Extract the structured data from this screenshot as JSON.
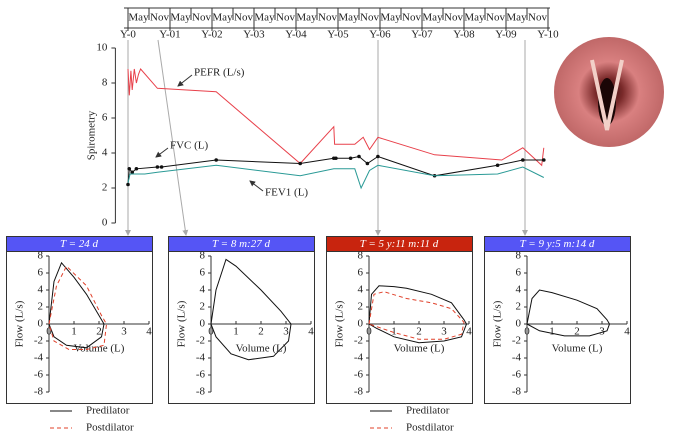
{
  "chart_data": [
    {
      "type": "line",
      "ylabel": "Spirometry",
      "xlim": [
        -0.3,
        10
      ],
      "ylim": [
        0,
        10
      ],
      "yticks": [
        0,
        2,
        4,
        6,
        8,
        10
      ],
      "xticks": [
        {
          "value": 0,
          "label": "Y-0"
        },
        {
          "value": 1,
          "label": "Y-01"
        },
        {
          "value": 2,
          "label": "Y-02"
        },
        {
          "value": 3,
          "label": "Y-03"
        },
        {
          "value": 4,
          "label": "Y-04"
        },
        {
          "value": 5,
          "label": "Y-05"
        },
        {
          "value": 6,
          "label": "Y-06"
        },
        {
          "value": 7,
          "label": "Y-07"
        },
        {
          "value": 8,
          "label": "Y-08"
        },
        {
          "value": 9,
          "label": "Y-09"
        },
        {
          "value": 10,
          "label": "Y-10"
        }
      ],
      "top_labels": [
        "May",
        "Nov",
        "May",
        "Nov",
        "May",
        "Nov",
        "May",
        "Nov",
        "May",
        "Nov",
        "May",
        "Nov",
        "May",
        "Nov",
        "May",
        "Nov",
        "May",
        "Nov",
        "May",
        "Nov"
      ],
      "series": [
        {
          "name": "PEFR (L/s)",
          "color": "#e8414b",
          "x": [
            0,
            0.03,
            0.07,
            0.1,
            0.15,
            0.2,
            0.25,
            0.3,
            0.7,
            2.1,
            4.1,
            4.9,
            4.92,
            5.4,
            5.6,
            5.75,
            5.95,
            7.3,
            8.9,
            9.4,
            9.85,
            9.9
          ],
          "values": [
            8.8,
            7.3,
            8.7,
            7.6,
            8.8,
            8.0,
            8.5,
            8.8,
            7.7,
            7.5,
            3.4,
            5.5,
            4.5,
            4.5,
            4.9,
            4.2,
            4.9,
            3.9,
            3.6,
            4.3,
            3.3,
            4.3
          ]
        },
        {
          "name": "FVC (L)",
          "color": "#111111",
          "markers": true,
          "x": [
            0,
            0.03,
            0.1,
            0.2,
            0.7,
            0.8,
            2.1,
            4.1,
            4.9,
            4.95,
            5.3,
            5.5,
            5.7,
            5.95,
            7.3,
            8.8,
            9.4,
            9.9
          ],
          "values": [
            2.2,
            3.1,
            2.9,
            3.1,
            3.2,
            3.2,
            3.6,
            3.4,
            3.7,
            3.7,
            3.7,
            3.8,
            3.4,
            3.8,
            2.7,
            3.3,
            3.6,
            3.6
          ]
        },
        {
          "name": "FEV1 (L)",
          "color": "#2a9a96",
          "x": [
            0,
            0.05,
            0.4,
            0.7,
            2.1,
            4.1,
            4.9,
            5.4,
            5.55,
            5.75,
            5.95,
            7.3,
            8.8,
            9.4,
            9.9
          ],
          "values": [
            2.3,
            2.8,
            2.8,
            2.9,
            3.3,
            2.7,
            3.1,
            3.1,
            2.0,
            3.0,
            3.3,
            2.7,
            2.8,
            3.2,
            2.6
          ]
        }
      ]
    },
    {
      "type": "loop",
      "title": "T = 24 d",
      "header_color": "#5555f5",
      "xlabel": "Volume (L)",
      "ylabel": "Flow (L/s)",
      "xlim": [
        0,
        4
      ],
      "ylim": [
        -8,
        8
      ],
      "xticks": [
        0,
        1,
        2,
        3,
        4
      ],
      "yticks": [
        -8,
        -6,
        -4,
        -2,
        0,
        2,
        4,
        6,
        8
      ],
      "legend": true,
      "series": [
        {
          "name": "Predilator",
          "color": "#111111",
          "x": [
            0,
            0.2,
            0.5,
            1.0,
            1.5,
            2.0,
            2.2,
            2.1,
            1.5,
            0.7,
            0.2,
            0
          ],
          "values": [
            0,
            5,
            7.2,
            5.5,
            3.5,
            1,
            0,
            -1.5,
            -2.8,
            -2.5,
            -1.5,
            0
          ]
        },
        {
          "name": "Postdilator",
          "color": "#e0402a",
          "dashed": true,
          "x": [
            0,
            0.3,
            0.7,
            1.5,
            2.1,
            2.3,
            2.2,
            1.5,
            0.8,
            0.2,
            0
          ],
          "values": [
            0,
            4.5,
            6.8,
            4.5,
            1,
            0,
            -2.5,
            -3.0,
            -3.0,
            -2.0,
            0
          ]
        }
      ]
    },
    {
      "type": "loop",
      "title": "T = 8 m:27 d",
      "header_color": "#5555f5",
      "xlabel": "Volume (L)",
      "ylabel": "Flow (L/s)",
      "xlim": [
        0,
        4
      ],
      "ylim": [
        -8,
        8
      ],
      "xticks": [
        0,
        1,
        2,
        3,
        4
      ],
      "yticks": [
        -8,
        -6,
        -4,
        -2,
        0,
        2,
        4,
        6,
        8
      ],
      "legend": false,
      "series": [
        {
          "color": "#111111",
          "x": [
            0,
            0.2,
            0.6,
            1.0,
            2.0,
            2.8,
            3.2,
            3.1,
            2.5,
            1.5,
            0.8,
            0.2,
            0
          ],
          "values": [
            0,
            4,
            7.6,
            6.8,
            4,
            1.5,
            0,
            -2,
            -3.8,
            -4.2,
            -3.5,
            -1.5,
            0
          ]
        }
      ]
    },
    {
      "type": "loop",
      "title": "T = 5 y:11 m:11 d",
      "header_color": "#c8240e",
      "xlabel": "Volume (L)",
      "ylabel": "Flow (L/s)",
      "xlim": [
        0,
        4
      ],
      "ylim": [
        -8,
        8
      ],
      "xticks": [
        0,
        1,
        2,
        3,
        4
      ],
      "yticks": [
        -8,
        -6,
        -4,
        -2,
        0,
        2,
        4,
        6,
        8
      ],
      "legend": true,
      "series": [
        {
          "name": "Predilator",
          "color": "#111111",
          "x": [
            0,
            0.1,
            0.4,
            1.0,
            1.5,
            2.5,
            3.3,
            3.8,
            3.9,
            3.7,
            3.0,
            2.0,
            1.0,
            0.3,
            0
          ],
          "values": [
            0,
            3.5,
            4.5,
            4.4,
            4.2,
            3.5,
            2.5,
            0.5,
            0,
            -1.5,
            -2,
            -2.2,
            -1.5,
            -0.5,
            0
          ]
        },
        {
          "name": "Postdilator",
          "color": "#e0402a",
          "dashed": true,
          "x": [
            0,
            0.2,
            0.6,
            1.5,
            2.5,
            3.3,
            3.8,
            3.7,
            3.0,
            2.0,
            1.0,
            0
          ],
          "values": [
            0,
            3.5,
            3.8,
            3,
            2.5,
            1.8,
            0.2,
            -1.2,
            -1.8,
            -1.8,
            -1,
            0
          ]
        }
      ]
    },
    {
      "type": "loop",
      "title": "T = 9 y:5 m:14 d",
      "header_color": "#5555f5",
      "xlabel": "Volume (L)",
      "ylabel": "Flow (L/s)",
      "xlim": [
        0,
        4
      ],
      "ylim": [
        -8,
        8
      ],
      "xticks": [
        0,
        1,
        2,
        3,
        4
      ],
      "yticks": [
        -8,
        -6,
        -4,
        -2,
        0,
        2,
        4,
        6,
        8
      ],
      "legend": false,
      "series": [
        {
          "color": "#111111",
          "x": [
            0,
            0.2,
            0.5,
            1.0,
            2.0,
            2.8,
            3.2,
            3.3,
            3.2,
            2.5,
            1.5,
            0.5,
            0
          ],
          "values": [
            0,
            3,
            4,
            3.7,
            2.8,
            1.8,
            0.5,
            0,
            -0.8,
            -1.4,
            -1.4,
            -0.8,
            0
          ]
        }
      ]
    }
  ]
}
